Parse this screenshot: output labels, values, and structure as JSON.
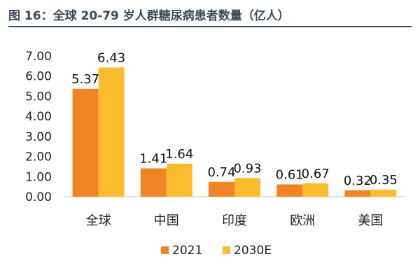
{
  "title": "图 16：全球 20-79 岁人群糖尿病患者数量（亿人）",
  "chart_data": {
    "type": "bar",
    "categories": [
      "全球",
      "中国",
      "印度",
      "欧洲",
      "美国"
    ],
    "series": [
      {
        "name": "2021",
        "values": [
          5.37,
          1.41,
          0.74,
          0.61,
          0.32
        ],
        "color": "#f08424"
      },
      {
        "name": "2030E",
        "values": [
          6.43,
          1.64,
          0.93,
          0.67,
          0.35
        ],
        "color": "#fbbd2e"
      }
    ],
    "yticks": [
      "0.00",
      "1.00",
      "2.00",
      "3.00",
      "4.00",
      "5.00",
      "6.00",
      "7.00"
    ],
    "ylim": [
      0,
      7
    ],
    "data_labels": [
      [
        "5.37",
        "1.41",
        "0.74",
        "0.61",
        "0.32"
      ],
      [
        "6.43",
        "1.64",
        "0.93",
        "0.67",
        "0.35"
      ]
    ],
    "legend_position": "bottom",
    "grid": false
  }
}
